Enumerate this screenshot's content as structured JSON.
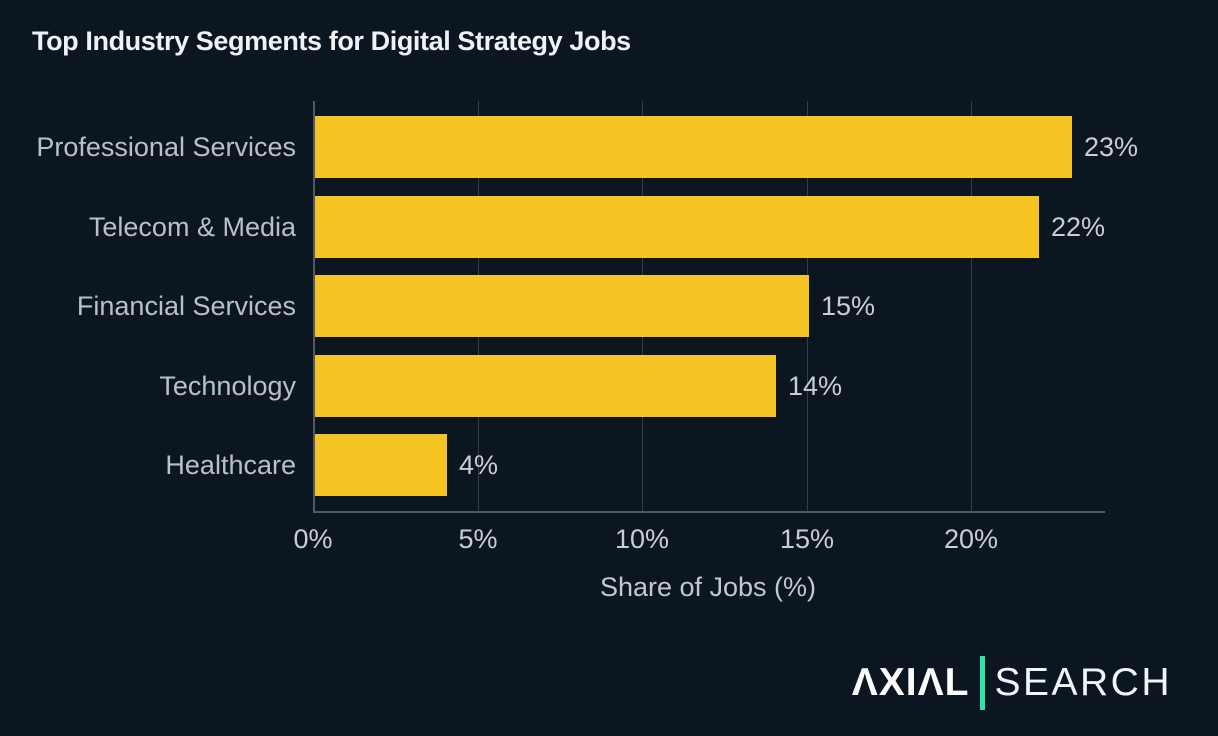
{
  "title": "Top Industry Segments for Digital Strategy Jobs",
  "chart_data": {
    "type": "bar",
    "orientation": "horizontal",
    "title": "Top Industry Segments for Digital Strategy Jobs",
    "categories": [
      "Professional Services",
      "Telecom & Media",
      "Financial Services",
      "Technology",
      "Healthcare"
    ],
    "values": [
      23,
      22,
      15,
      14,
      4
    ],
    "value_labels": [
      "23%",
      "22%",
      "15%",
      "14%",
      "4%"
    ],
    "xlabel": "Share of Jobs (%)",
    "ylabel": "",
    "xlim": [
      0,
      24
    ],
    "xticks": [
      0,
      5,
      10,
      15,
      20
    ],
    "xtick_labels": [
      "0%",
      "5%",
      "10%",
      "15%",
      "20%"
    ],
    "grid": "vertical",
    "legend": "none",
    "bar_color": "#f5c324",
    "background_color": "#0c1620",
    "gridline_color": "#333e48",
    "axis_color": "#4e5a64",
    "label_color": "#b9c0c6",
    "value_color": "#c8ced3"
  },
  "logo": {
    "brand_left": "AXIAL",
    "brand_left_display": "ΛXIΛL",
    "brand_right": "SEARCH",
    "divider_color": "#2de3a6"
  }
}
